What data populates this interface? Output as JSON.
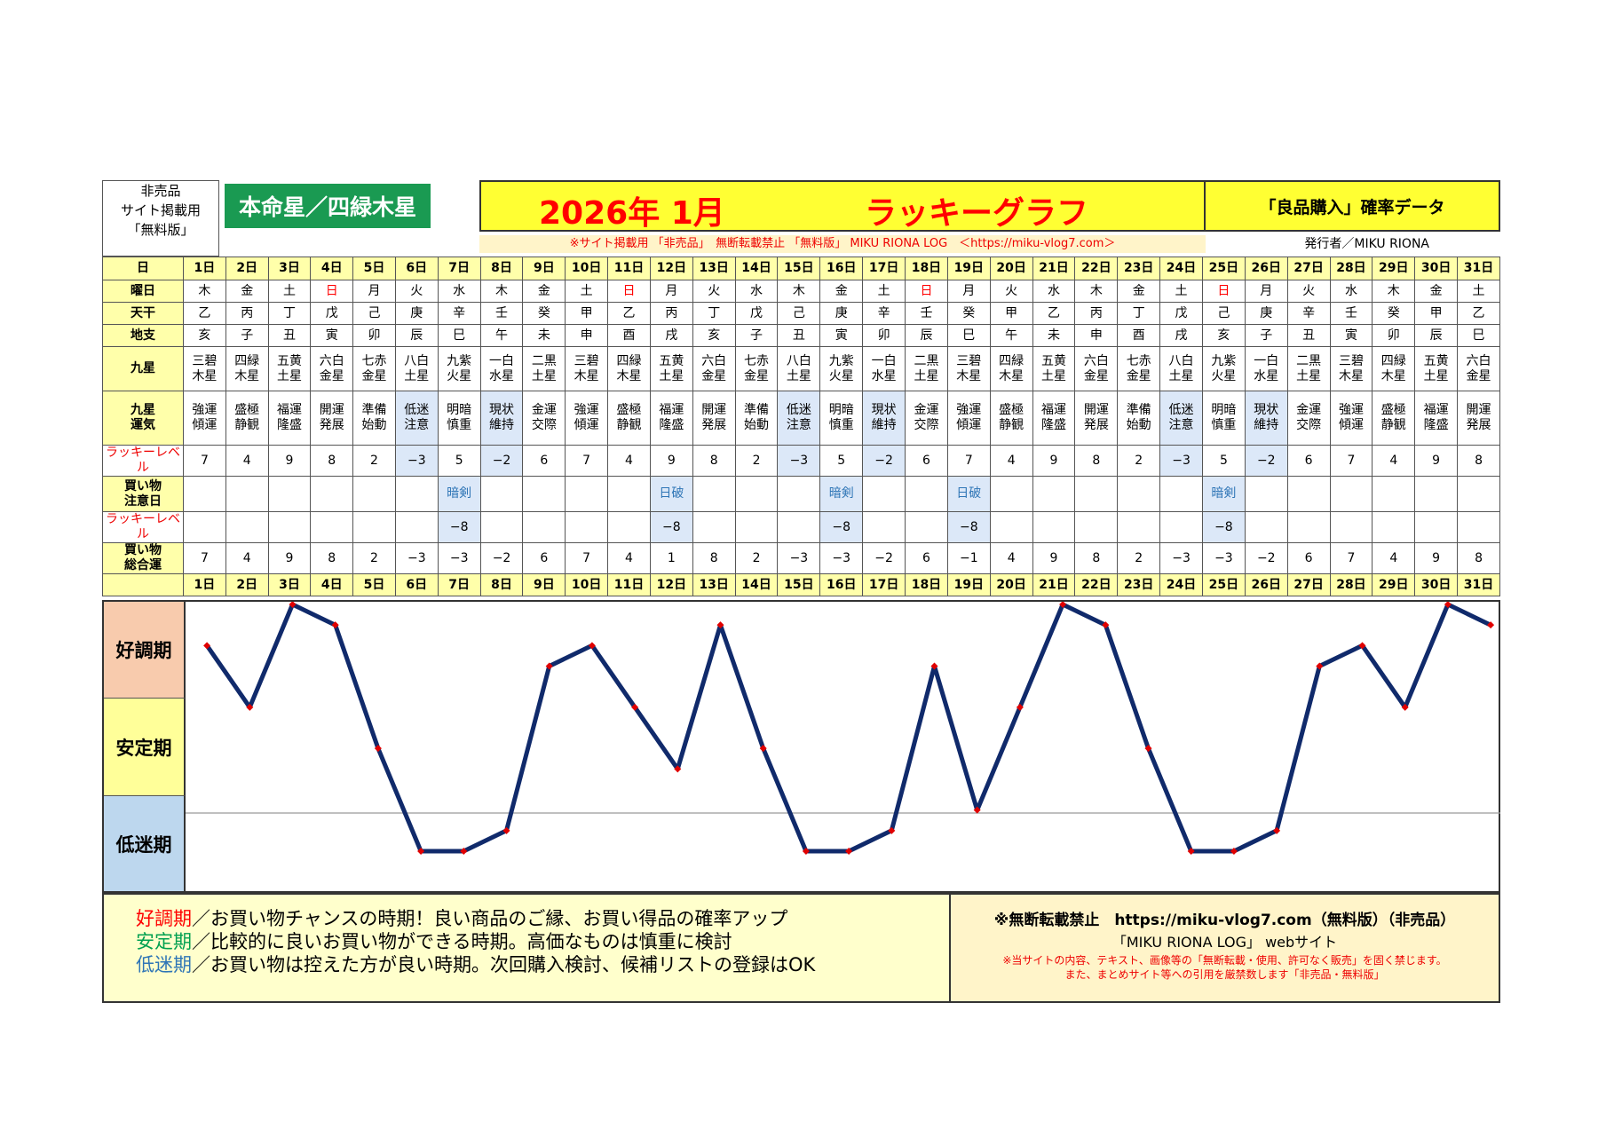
{
  "header": {
    "left_notes": [
      "非売品",
      "サイト掲載用",
      "「無料版」"
    ],
    "honmei": "本命星／四緑木星",
    "title_month": "2026年 1月",
    "title_name": "ラッキーグラフ",
    "right_title": "「良品購入」確率データ",
    "notice": "※サイト掲載用 「非売品」　無断転載禁止 「無料版」 MIKU RIONA LOG　＜https://miku-vlog7.com＞",
    "publisher": "発行者／MIKU RIONA"
  },
  "row_labels": {
    "day": "日",
    "weekday": "曜日",
    "tenkan": "天干",
    "chishi": "地支",
    "kyusei": "九星",
    "kyusei_unki": "九星\n運気",
    "lucky_level": "ラッキーレベル",
    "caution": "買い物\n注意日",
    "lucky_level2": "ラッキーレベル",
    "total": "買い物\n総合運"
  },
  "days": [
    "1日",
    "2日",
    "3日",
    "4日",
    "5日",
    "6日",
    "7日",
    "8日",
    "9日",
    "10日",
    "11日",
    "12日",
    "13日",
    "14日",
    "15日",
    "16日",
    "17日",
    "18日",
    "19日",
    "20日",
    "21日",
    "22日",
    "23日",
    "24日",
    "25日",
    "26日",
    "27日",
    "28日",
    "29日",
    "30日",
    "31日"
  ],
  "weekdays": [
    "木",
    "金",
    "土",
    "日",
    "月",
    "火",
    "水",
    "木",
    "金",
    "土",
    "日",
    "月",
    "火",
    "水",
    "木",
    "金",
    "土",
    "日",
    "月",
    "火",
    "水",
    "木",
    "金",
    "土",
    "日",
    "月",
    "火",
    "水",
    "木",
    "金",
    "土"
  ],
  "tenkan": [
    "乙",
    "丙",
    "丁",
    "戊",
    "己",
    "庚",
    "辛",
    "壬",
    "癸",
    "甲",
    "乙",
    "丙",
    "丁",
    "戊",
    "己",
    "庚",
    "辛",
    "壬",
    "癸",
    "甲",
    "乙",
    "丙",
    "丁",
    "戊",
    "己",
    "庚",
    "辛",
    "壬",
    "癸",
    "甲",
    "乙"
  ],
  "chishi": [
    "亥",
    "子",
    "丑",
    "寅",
    "卯",
    "辰",
    "巳",
    "午",
    "未",
    "申",
    "酉",
    "戌",
    "亥",
    "子",
    "丑",
    "寅",
    "卯",
    "辰",
    "巳",
    "午",
    "未",
    "申",
    "酉",
    "戌",
    "亥",
    "子",
    "丑",
    "寅",
    "卯",
    "辰",
    "巳"
  ],
  "kyusei": [
    "三碧\n木星",
    "四緑\n木星",
    "五黄\n土星",
    "六白\n金星",
    "七赤\n金星",
    "八白\n土星",
    "九紫\n火星",
    "一白\n水星",
    "二黒\n土星",
    "三碧\n木星",
    "四緑\n木星",
    "五黄\n土星",
    "六白\n金星",
    "七赤\n金星",
    "八白\n土星",
    "九紫\n火星",
    "一白\n水星",
    "二黒\n土星",
    "三碧\n木星",
    "四緑\n木星",
    "五黄\n土星",
    "六白\n金星",
    "七赤\n金星",
    "八白\n土星",
    "九紫\n火星",
    "一白\n水星",
    "二黒\n土星",
    "三碧\n木星",
    "四緑\n木星",
    "五黄\n土星",
    "六白\n金星"
  ],
  "unki": [
    "強運\n傾運",
    "盛極\n静観",
    "福運\n隆盛",
    "開運\n発展",
    "準備\n始動",
    "低迷\n注意",
    "明暗\n慎重",
    "現状\n維持",
    "金運\n交際",
    "強運\n傾運",
    "盛極\n静観",
    "福運\n隆盛",
    "開運\n発展",
    "準備\n始動",
    "低迷\n注意",
    "明暗\n慎重",
    "現状\n維持",
    "金運\n交際",
    "強運\n傾運",
    "盛極\n静観",
    "福運\n隆盛",
    "開運\n発展",
    "準備\n始動",
    "低迷\n注意",
    "明暗\n慎重",
    "現状\n維持",
    "金運\n交際",
    "強運\n傾運",
    "盛極\n静観",
    "福運\n隆盛",
    "開運\n発展"
  ],
  "lucky_level": [
    "7",
    "4",
    "9",
    "8",
    "2",
    "−3",
    "5",
    "−2",
    "6",
    "7",
    "4",
    "9",
    "8",
    "2",
    "−3",
    "5",
    "−2",
    "6",
    "7",
    "4",
    "9",
    "8",
    "2",
    "−3",
    "5",
    "−2",
    "6",
    "7",
    "4",
    "9",
    "8"
  ],
  "caution": [
    "",
    "",
    "",
    "",
    "",
    "",
    "暗剣",
    "",
    "",
    "",
    "",
    "日破",
    "",
    "",
    "",
    "暗剣",
    "",
    "",
    "日破",
    "",
    "",
    "",
    "",
    "",
    "暗剣",
    "",
    "",
    "",
    "",
    "",
    ""
  ],
  "lucky_level2": [
    "",
    "",
    "",
    "",
    "",
    "",
    "−8",
    "",
    "",
    "",
    "",
    "−8",
    "",
    "",
    "",
    "−8",
    "",
    "",
    "−8",
    "",
    "",
    "",
    "",
    "",
    "−8",
    "",
    "",
    "",
    "",
    "",
    ""
  ],
  "total": [
    "7",
    "4",
    "9",
    "8",
    "2",
    "−3",
    "−3",
    "−2",
    "6",
    "7",
    "4",
    "1",
    "8",
    "2",
    "−3",
    "−3",
    "−2",
    "6",
    "−1",
    "4",
    "9",
    "8",
    "2",
    "−3",
    "−3",
    "−2",
    "6",
    "7",
    "4",
    "9",
    "8"
  ],
  "zones": [
    "好調期",
    "安定期",
    "低迷期"
  ],
  "colors": {
    "good": "#f8cbad",
    "stable": "#ffff99",
    "low": "#bdd7ee",
    "line": "#102a6b",
    "marker": "#e00000",
    "yellow": "#ffff33",
    "green": "#1a9a52"
  },
  "chart_data": {
    "type": "line",
    "categories": [
      "1日",
      "2日",
      "3日",
      "4日",
      "5日",
      "6日",
      "7日",
      "8日",
      "9日",
      "10日",
      "11日",
      "12日",
      "13日",
      "14日",
      "15日",
      "16日",
      "17日",
      "18日",
      "19日",
      "20日",
      "21日",
      "22日",
      "23日",
      "24日",
      "25日",
      "26日",
      "27日",
      "28日",
      "29日",
      "30日",
      "31日"
    ],
    "values": [
      7,
      4,
      9,
      8,
      2,
      -3,
      -3,
      -2,
      6,
      7,
      4,
      1,
      8,
      2,
      -3,
      -3,
      -2,
      6,
      -1,
      4,
      9,
      8,
      2,
      -3,
      -3,
      -2,
      6,
      7,
      4,
      9,
      8
    ],
    "ylim": [
      -3,
      9
    ],
    "bands": [
      "好調期",
      "安定期",
      "低迷期"
    ]
  },
  "legend": [
    {
      "key": "好調期",
      "text": "／お買い物チャンスの時期！良い商品のご縁、お買い得品の確率アップ",
      "color": "#ff0000"
    },
    {
      "key": "安定期",
      "text": "／比較的に良いお買い物ができる時期。高価なものは慎重に検討",
      "color": "#00a050"
    },
    {
      "key": "低迷期",
      "text": "／お買い物は控えた方が良い時期。次回購入検討、候補リストの登録はOK",
      "color": "#2e75b6"
    }
  ],
  "footer": {
    "line1": "※無断転載禁止　https://miku-vlog7.com（無料版）（非売品）",
    "line2": "「MIKU RIONA LOG」 webサイト",
    "line3": "※当サイトの内容、テキスト、画像等の「無断転載・使用、許可なく販売」を固く禁じます。",
    "line4": "また、まとめサイト等への引用を厳禁数します「非売品・無料版」"
  }
}
